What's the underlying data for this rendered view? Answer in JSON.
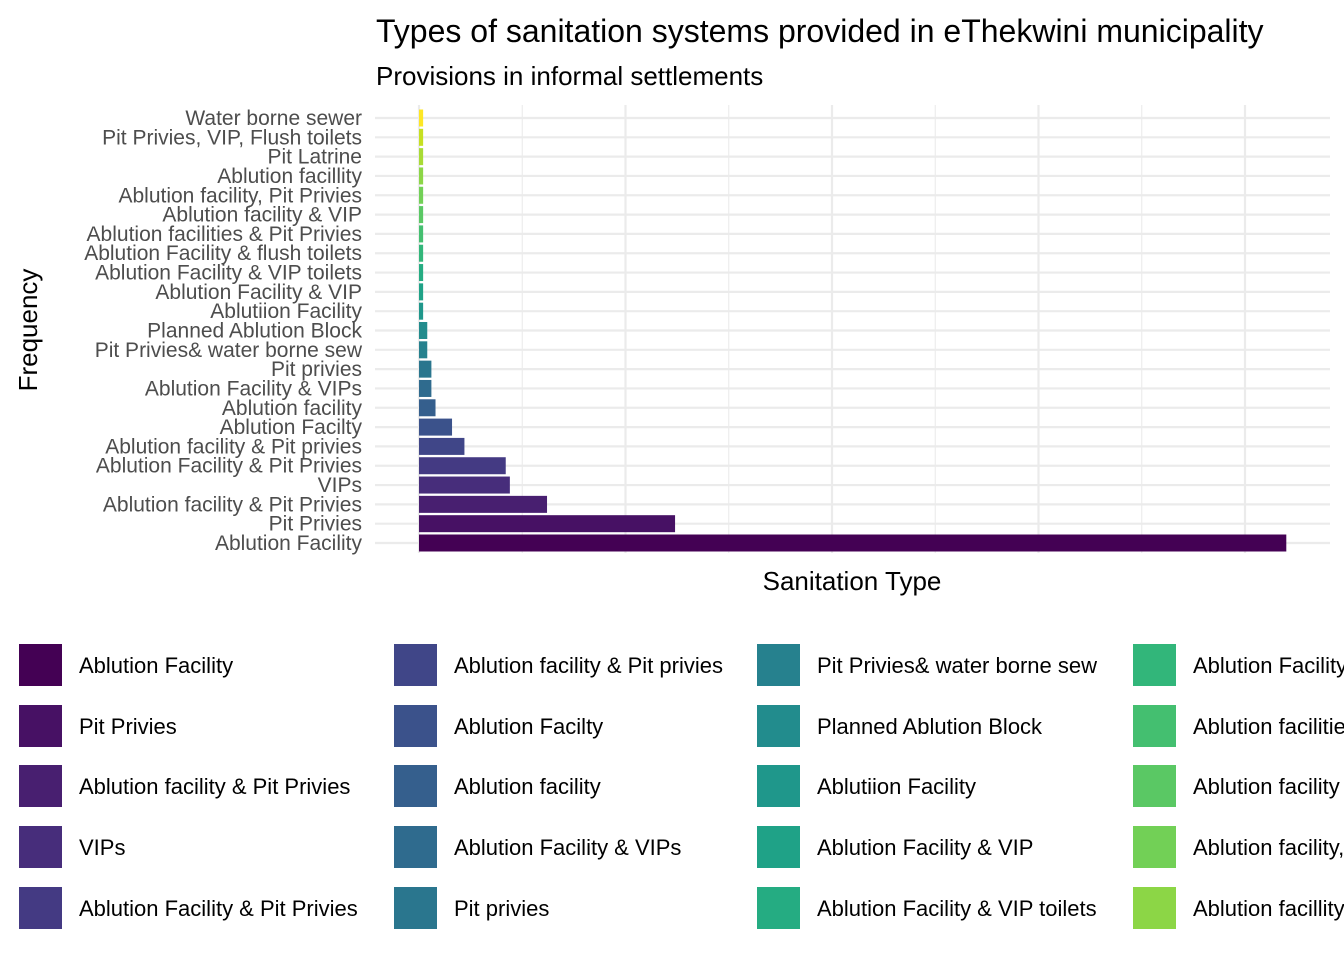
{
  "chart_data": {
    "type": "bar",
    "orientation": "horizontal",
    "title": "Types of sanitation systems provided in eThekwini municipality",
    "subtitle": "Provisions in informal settlements",
    "xlabel": "Sanitation Type",
    "ylabel": "Frequency",
    "grid": true,
    "x_tick_labels_shown": false,
    "legend_placement": "bottom",
    "categories": [
      "Ablution Facility",
      "Pit Privies",
      "Ablution facility & Pit Privies",
      "VIPs",
      "Ablution Facility & Pit Privies",
      "Ablution facility & Pit privies",
      "Ablution Facilty",
      "Ablution facility",
      "Ablution Facility & VIPs",
      "Pit privies",
      "Pit Privies& water borne sew",
      "Planned Ablution Block",
      "Ablutiion Facility",
      "Ablution Facility & VIP",
      "Ablution Facility & VIP toilets",
      "Ablution Facility & flush toilets",
      "Ablution facilities & Pit Privies",
      "Ablution facility & VIP",
      "Ablution facility, Pit Privies",
      "Ablution facillity",
      "Pit Latrine",
      "Pit Privies, VIP, Flush toilets",
      "Water borne sewer"
    ],
    "values": [
      210,
      62,
      31,
      22,
      21,
      11,
      8,
      4,
      3,
      3,
      2,
      2,
      1,
      1,
      1,
      1,
      1,
      1,
      1,
      1,
      1,
      1,
      1
    ],
    "colors": [
      "#440154",
      "#471164",
      "#481F70",
      "#472D7B",
      "#443A83",
      "#404688",
      "#3B528B",
      "#355F8D",
      "#2F6B8E",
      "#2A768E",
      "#26818E",
      "#228C8D",
      "#1F978B",
      "#1FA287",
      "#25AC82",
      "#32B67A",
      "#44BF70",
      "#5AC864",
      "#72D056",
      "#8CD646",
      "#A8DB34",
      "#C6E021",
      "#FDE725"
    ]
  }
}
